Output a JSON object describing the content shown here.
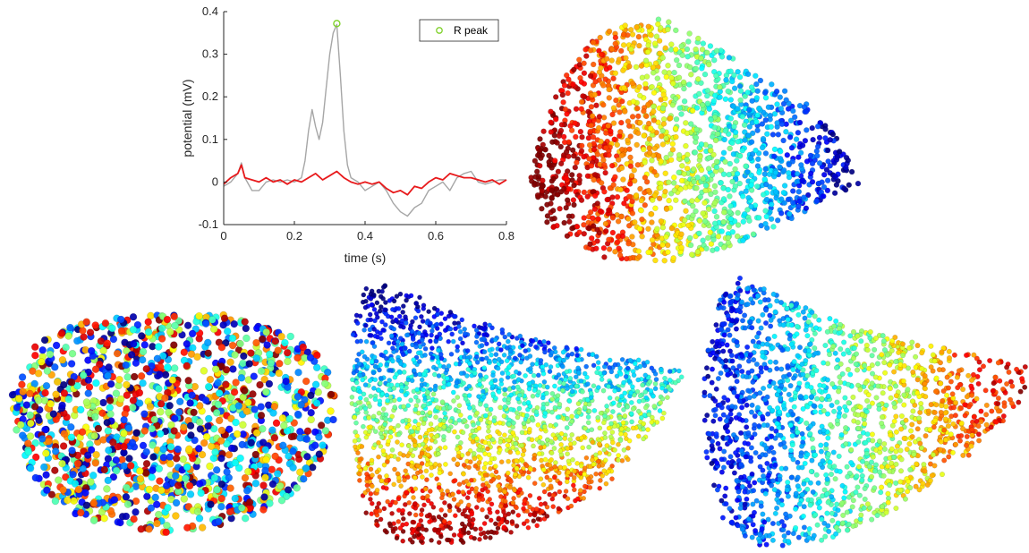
{
  "chart_data": [
    {
      "type": "line",
      "xlabel": "time (s)",
      "ylabel": "potential (mV)",
      "xlim": [
        0,
        0.8
      ],
      "ylim": [
        -0.1,
        0.4
      ],
      "xticks": [
        0,
        0.2,
        0.4,
        0.6,
        0.8
      ],
      "xtick_labels": [
        "0",
        "0.2",
        "0.4",
        "0.6",
        "0.8"
      ],
      "yticks": [
        -0.1,
        0,
        0.1,
        0.2,
        0.3,
        0.4
      ],
      "ytick_labels": [
        "-0.1",
        "0",
        "0.1",
        "0.2",
        "0.3",
        "0.4"
      ],
      "grid": false,
      "legend_position": "top-right",
      "series": [
        {
          "color": "#a6a6a6",
          "x": [
            0,
            0.02,
            0.04,
            0.05,
            0.06,
            0.08,
            0.1,
            0.12,
            0.14,
            0.16,
            0.18,
            0.2,
            0.22,
            0.23,
            0.24,
            0.25,
            0.26,
            0.27,
            0.28,
            0.29,
            0.3,
            0.31,
            0.32,
            0.33,
            0.34,
            0.35,
            0.36,
            0.38,
            0.4,
            0.42,
            0.44,
            0.46,
            0.48,
            0.5,
            0.52,
            0.54,
            0.56,
            0.58,
            0.6,
            0.62,
            0.64,
            0.66,
            0.68,
            0.7,
            0.72,
            0.74,
            0.76,
            0.78,
            0.8
          ],
          "y": [
            -0.01,
            0.0,
            0.02,
            0.045,
            0.01,
            -0.02,
            -0.02,
            0.0,
            0.005,
            0.0,
            0.005,
            0.0,
            0.01,
            0.05,
            0.12,
            0.17,
            0.13,
            0.1,
            0.14,
            0.22,
            0.3,
            0.35,
            0.37,
            0.25,
            0.12,
            0.04,
            0.01,
            0.0,
            -0.02,
            -0.01,
            0.0,
            -0.02,
            -0.05,
            -0.07,
            -0.08,
            -0.06,
            -0.05,
            -0.02,
            -0.01,
            0.0,
            -0.02,
            0.01,
            0.02,
            0.025,
            0.0,
            -0.005,
            0.0,
            0.005,
            0.005
          ]
        },
        {
          "color": "#e8191b",
          "x": [
            0,
            0.02,
            0.04,
            0.05,
            0.06,
            0.08,
            0.1,
            0.12,
            0.14,
            0.16,
            0.18,
            0.2,
            0.22,
            0.24,
            0.26,
            0.28,
            0.3,
            0.32,
            0.34,
            0.36,
            0.38,
            0.4,
            0.42,
            0.44,
            0.46,
            0.48,
            0.5,
            0.52,
            0.54,
            0.56,
            0.58,
            0.6,
            0.62,
            0.64,
            0.66,
            0.68,
            0.7,
            0.72,
            0.74,
            0.76,
            0.78,
            0.8
          ],
          "y": [
            -0.005,
            0.01,
            0.02,
            0.04,
            0.01,
            0.005,
            0.0,
            0.01,
            0.0,
            0.005,
            -0.005,
            0.005,
            0.0,
            0.01,
            0.02,
            0.005,
            0.015,
            0.025,
            0.01,
            0.0,
            -0.005,
            0.0,
            -0.005,
            0.0,
            -0.015,
            -0.025,
            -0.02,
            -0.03,
            -0.01,
            -0.015,
            0.0,
            0.01,
            0.005,
            0.02,
            0.015,
            0.01,
            0.01,
            0.005,
            0.0,
            0.005,
            -0.005,
            0.005
          ]
        }
      ],
      "markers": [
        {
          "name": "R peak",
          "x": 0.32,
          "y": 0.372,
          "color": "#7fd12a",
          "marker": "o"
        }
      ]
    },
    {
      "type": "scatter",
      "colormap": "jet",
      "view": "top"
    },
    {
      "type": "scatter",
      "colormap": "jet",
      "view": "side"
    },
    {
      "type": "scatter",
      "colormap": "jet",
      "view": "front"
    },
    {
      "type": "scatter",
      "colormap": "jet",
      "view": "back"
    }
  ]
}
